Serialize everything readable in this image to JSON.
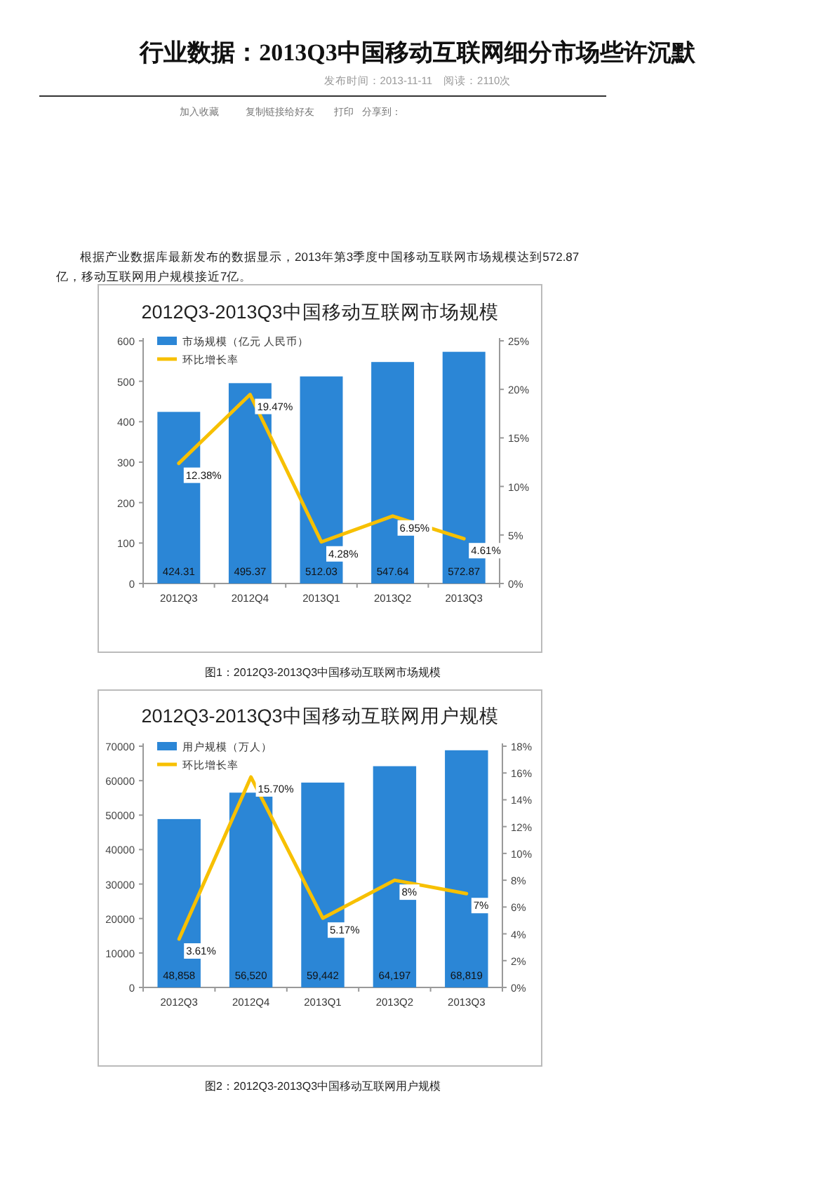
{
  "chart_data": [
    {
      "type": "bar",
      "title": "2012Q3-2013Q3中国移动互联网市场规模",
      "categories": [
        "2012Q3",
        "2012Q4",
        "2013Q1",
        "2013Q2",
        "2013Q3"
      ],
      "series": [
        {
          "name": "市场规模（亿元 人民币）",
          "color": "#2b86d6",
          "values": [
            424.31,
            495.37,
            512.03,
            547.64,
            572.87
          ],
          "value_labels": [
            "424.31",
            "495.37",
            "512.03",
            "547.64",
            "572.87"
          ]
        },
        {
          "name": "环比增长率",
          "type": "line",
          "axis": "y2",
          "color": "#f7c000",
          "values": [
            12.38,
            19.47,
            4.28,
            6.95,
            4.61
          ],
          "value_labels": [
            "12.38%",
            "19.47%",
            "4.28%",
            "6.95%",
            "4.61%"
          ]
        }
      ],
      "ylim": [
        0,
        600
      ],
      "yticks": [
        0,
        100,
        200,
        300,
        400,
        500,
        600
      ],
      "y2lim": [
        0,
        25
      ],
      "y2ticks": [
        {
          "value": 0,
          "label": "0%"
        },
        {
          "value": 5,
          "label": "5%"
        },
        {
          "value": 10,
          "label": "10%"
        },
        {
          "value": 15,
          "label": "15%"
        },
        {
          "value": 20,
          "label": "20%"
        },
        {
          "value": 25,
          "label": "25%"
        }
      ],
      "grid": false,
      "legend": "top left",
      "marker": "none",
      "line_style": "solid",
      "annotations": [
        "行业数据：2013Q3中国移动互联网细分市场些许沉默",
        "发布时间：2013-11-11　阅读：2110次",
        "加入收藏",
        "复制链接给好友",
        "打印",
        "分享到：",
        "根据产业数据库最新发布的数据显示，2013年第3季度中国移动互联网市场规模达到572.87亿，移动互联网用户规模接近7亿。",
        "图1：2012Q3-2013Q3中国移动互联网市场规模"
      ]
    },
    {
      "type": "bar",
      "title": "2012Q3-2013Q3中国移动互联网用户规模",
      "categories": [
        "2012Q3",
        "2012Q4",
        "2013Q1",
        "2013Q2",
        "2013Q3"
      ],
      "series": [
        {
          "name": "用户规模（万人）",
          "color": "#2b86d6",
          "values": [
            48858,
            56520,
            59442,
            64197,
            68819
          ],
          "value_labels": [
            "48,858",
            "56,520",
            "59,442",
            "64,197",
            "68,819"
          ]
        },
        {
          "name": "环比增长率",
          "type": "line",
          "axis": "y2",
          "color": "#f7c000",
          "values": [
            3.61,
            15.7,
            5.17,
            8,
            7
          ],
          "value_labels": [
            "3.61%",
            "15.70%",
            "5.17%",
            "8%",
            "7%"
          ]
        }
      ],
      "ylim": [
        0,
        70000
      ],
      "yticks": [
        0,
        10000,
        20000,
        30000,
        40000,
        50000,
        60000,
        70000
      ],
      "y2lim": [
        0,
        18
      ],
      "y2ticks": [
        {
          "value": 0,
          "label": "0%"
        },
        {
          "value": 2,
          "label": "2%"
        },
        {
          "value": 4,
          "label": "4%"
        },
        {
          "value": 6,
          "label": "6%"
        },
        {
          "value": 8,
          "label": "8%"
        },
        {
          "value": 10,
          "label": "10%"
        },
        {
          "value": 12,
          "label": "12%"
        },
        {
          "value": 14,
          "label": "14%"
        },
        {
          "value": 16,
          "label": "16%"
        },
        {
          "value": 18,
          "label": "18%"
        }
      ],
      "grid": false,
      "legend": "top left",
      "marker": "none",
      "line_style": "solid",
      "annotations": [
        "图2：2012Q3-2013Q3中国移动互联网用户规模"
      ]
    }
  ]
}
